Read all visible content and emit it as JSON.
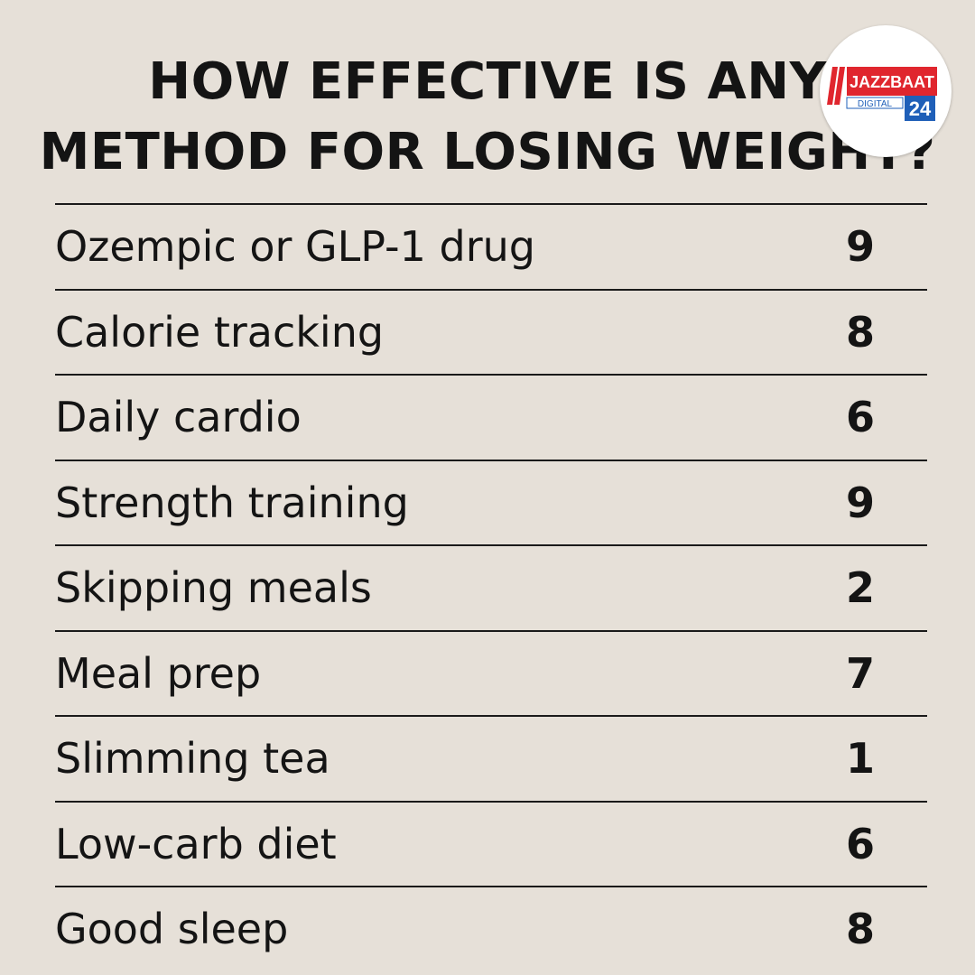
{
  "title": {
    "line1": "HOW EFFECTIVE IS ANY",
    "line2": "METHOD FOR LOSING WEIGHT?"
  },
  "rows": [
    {
      "method": "Ozempic or GLP-1 drug",
      "score": "9"
    },
    {
      "method": "Calorie tracking",
      "score": "8"
    },
    {
      "method": "Daily cardio",
      "score": "6"
    },
    {
      "method": "Strength training",
      "score": "9"
    },
    {
      "method": "Skipping meals",
      "score": "2"
    },
    {
      "method": "Meal prep",
      "score": "7"
    },
    {
      "method": "Slimming tea",
      "score": "1"
    },
    {
      "method": "Low-carb diet",
      "score": "6"
    },
    {
      "method": "Good sleep",
      "score": "8"
    }
  ],
  "logo": {
    "name": "JAZZBAAT",
    "sub": "DIGITAL",
    "number": "24",
    "colors": {
      "red": "#e0262e",
      "blue": "#1f5fb8"
    }
  },
  "colors": {
    "background": "#e6e0d8",
    "text": "#141414"
  }
}
